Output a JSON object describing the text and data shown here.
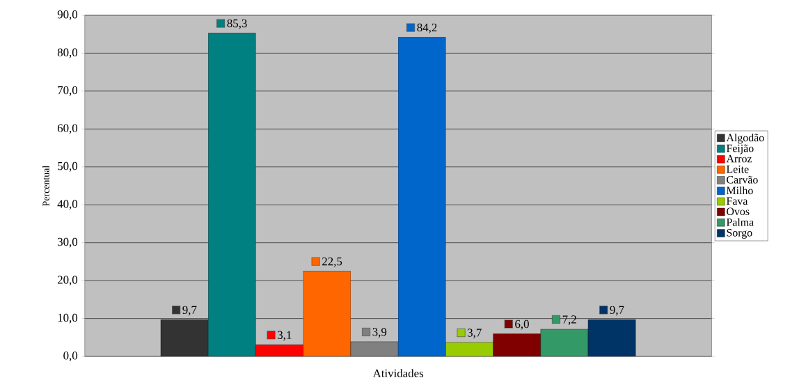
{
  "chart_data": {
    "type": "bar",
    "xlabel": "Atividades",
    "ylabel": "Percentual",
    "categories": [
      null
    ],
    "ylim": [
      0,
      90
    ],
    "yticks": [
      {
        "value": 0,
        "label": "0,0"
      },
      {
        "value": 10,
        "label": "10,0"
      },
      {
        "value": 20,
        "label": "20,0"
      },
      {
        "value": 30,
        "label": "30,0"
      },
      {
        "value": 40,
        "label": "40,0"
      },
      {
        "value": 50,
        "label": "50,0"
      },
      {
        "value": 60,
        "label": "60,0"
      },
      {
        "value": 70,
        "label": "70,0"
      },
      {
        "value": 80,
        "label": "80,0"
      },
      {
        "value": 90,
        "label": "90,0"
      }
    ],
    "grid": "y",
    "legend": "right",
    "series": [
      {
        "name": "Algodão",
        "color": "#333333",
        "values": [
          9.7
        ],
        "value_labels": [
          "9,7"
        ]
      },
      {
        "name": "Feijão",
        "color": "#008080",
        "values": [
          85.3
        ],
        "value_labels": [
          "85,3"
        ]
      },
      {
        "name": "Arroz",
        "color": "#ff0000",
        "values": [
          3.1
        ],
        "value_labels": [
          "3,1"
        ]
      },
      {
        "name": "Leite",
        "color": "#ff6600",
        "values": [
          22.5
        ],
        "value_labels": [
          "22,5"
        ]
      },
      {
        "name": "Carvão",
        "color": "#808080",
        "values": [
          3.9
        ],
        "value_labels": [
          "3,9"
        ]
      },
      {
        "name": "Milho",
        "color": "#0066cc",
        "values": [
          84.2
        ],
        "value_labels": [
          "84,2"
        ]
      },
      {
        "name": "Fava",
        "color": "#99cc00",
        "values": [
          3.7
        ],
        "value_labels": [
          "3,7"
        ]
      },
      {
        "name": "Ovos",
        "color": "#800000",
        "values": [
          6.0
        ],
        "value_labels": [
          "6,0"
        ]
      },
      {
        "name": "Palma",
        "color": "#339966",
        "values": [
          7.2
        ],
        "value_labels": [
          "7,2"
        ]
      },
      {
        "name": "Sorgo",
        "color": "#003366",
        "values": [
          9.7
        ],
        "value_labels": [
          "9,7"
        ]
      }
    ]
  }
}
